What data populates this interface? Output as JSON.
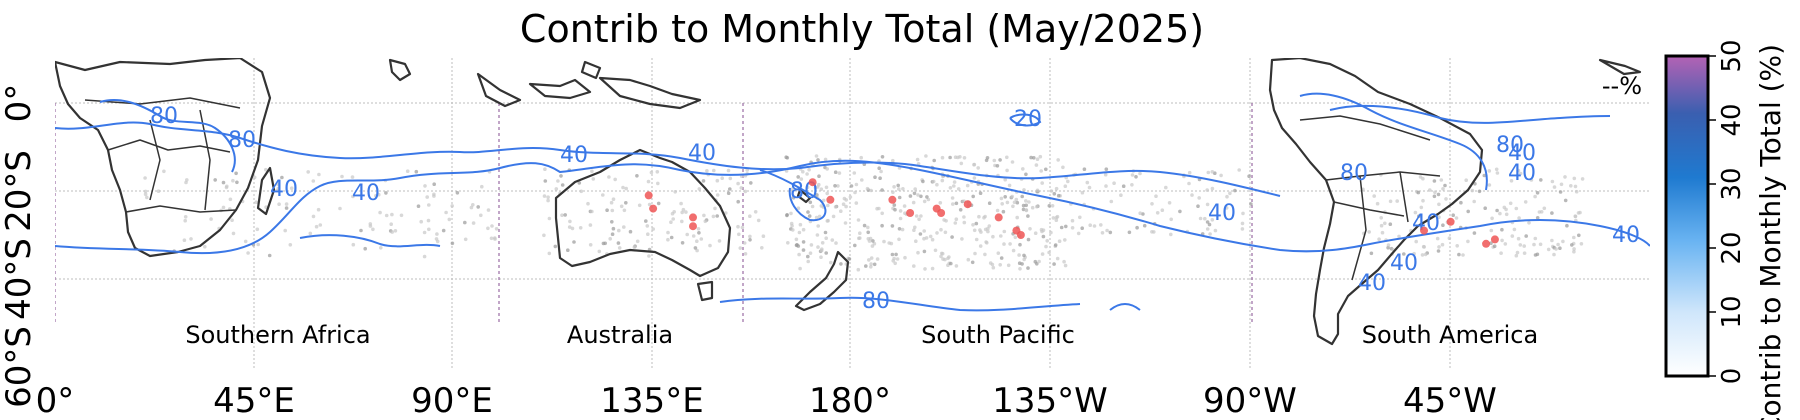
{
  "title": "Contrib to Monthly Total (May/2025)",
  "y_ticks": [
    "0°",
    "20°S",
    "40°S",
    "60°S"
  ],
  "x_ticks": [
    "0°",
    "45°E",
    "90°E",
    "135°E",
    "180°",
    "135°W",
    "90°W",
    "45°W"
  ],
  "regions": [
    "Southern Africa",
    "Australia",
    "South Pacific",
    "South America"
  ],
  "colorbar": {
    "label": "Contrib to Monthly Total (%)",
    "ticks": [
      "0",
      "10",
      "20",
      "30",
      "40",
      "50"
    ],
    "range": [
      0,
      50
    ],
    "colors": [
      "#ffffff",
      "#cfe6fb",
      "#6ab4f2",
      "#1f7ad0",
      "#3a5fb0",
      "#b462b4"
    ],
    "missing_label": "--%"
  },
  "contour_labels": [
    "80",
    "80",
    "40",
    "40",
    "40",
    "40",
    "40",
    "80",
    "20",
    "40",
    "40",
    "80",
    "80",
    "40",
    "40",
    "40",
    "40",
    "80"
  ],
  "colors": {
    "contour": "#3b78e7",
    "coast": "#333333",
    "points_gray": "#c8c8c8",
    "points_red": "#ee5555",
    "region_divider": "#9a6ca4"
  },
  "chart_data": {
    "type": "map",
    "title": "Contrib to Monthly Total (May/2025)",
    "projection": "equirectangular",
    "lon_range": [
      0,
      360
    ],
    "lat_range": [
      -60,
      10
    ],
    "contour_levels": [
      20,
      40,
      80
    ],
    "regions": [
      "Southern Africa",
      "Australia",
      "South Pacific",
      "South America"
    ],
    "region_boundaries_lon": [
      0,
      100,
      165,
      270
    ],
    "high_contribution_points": [
      {
        "lon": 134,
        "lat": -21
      },
      {
        "lon": 135,
        "lat": -24
      },
      {
        "lon": 144,
        "lat": -26
      },
      {
        "lon": 144,
        "lat": -28
      },
      {
        "lon": 171,
        "lat": -18
      },
      {
        "lon": 175,
        "lat": -22
      },
      {
        "lon": 189,
        "lat": -22
      },
      {
        "lon": 193,
        "lat": -25
      },
      {
        "lon": 199,
        "lat": -24
      },
      {
        "lon": 200,
        "lat": -25
      },
      {
        "lon": 206,
        "lat": -23
      },
      {
        "lon": 213,
        "lat": -26
      },
      {
        "lon": 217,
        "lat": -29
      },
      {
        "lon": 218,
        "lat": -30
      },
      {
        "lon": 309,
        "lat": -29
      },
      {
        "lon": 315,
        "lat": -27
      },
      {
        "lon": 323,
        "lat": -32
      },
      {
        "lon": 325,
        "lat": -31
      }
    ]
  }
}
